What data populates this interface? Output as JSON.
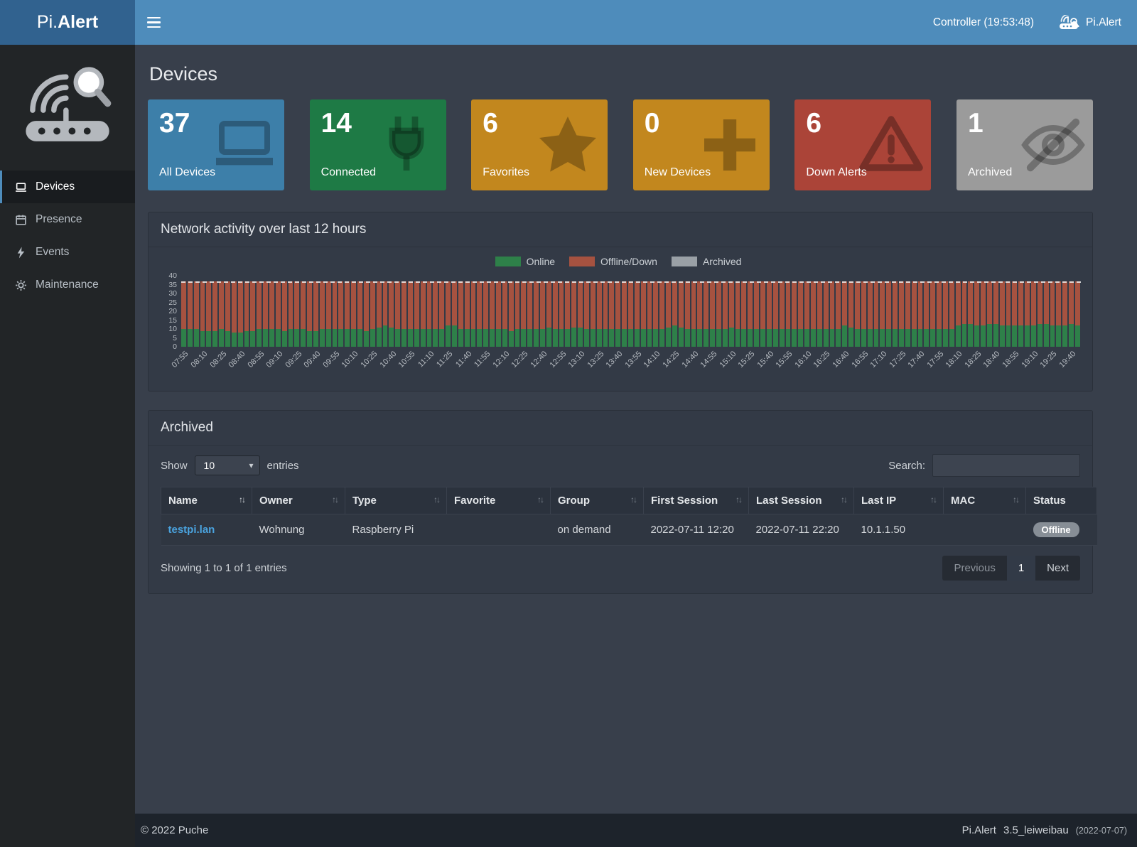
{
  "navbar": {
    "brand_pi": "Pi.",
    "brand_alert": "Alert",
    "controller": "Controller (19:53:48)",
    "right_brand": "Pi.Alert"
  },
  "sidebar": {
    "items": [
      {
        "label": "Devices",
        "icon": "laptop-icon",
        "active": true
      },
      {
        "label": "Presence",
        "icon": "calendar-icon",
        "active": false
      },
      {
        "label": "Events",
        "icon": "bolt-icon",
        "active": false
      },
      {
        "label": "Maintenance",
        "icon": "gear-icon",
        "active": false
      }
    ]
  },
  "page": {
    "title": "Devices"
  },
  "cards": [
    {
      "value": "37",
      "label": "All Devices",
      "color": "#3d7fa9",
      "icon": "laptop-icon"
    },
    {
      "value": "14",
      "label": "Connected",
      "color": "#1e7a45",
      "icon": "plug-icon"
    },
    {
      "value": "6",
      "label": "Favorites",
      "color": "#c2871e",
      "icon": "star-icon"
    },
    {
      "value": "0",
      "label": "New Devices",
      "color": "#c2871e",
      "icon": "plus-icon"
    },
    {
      "value": "6",
      "label": "Down Alerts",
      "color": "#ab4438",
      "icon": "warning-icon"
    },
    {
      "value": "1",
      "label": "Archived",
      "color": "#9b9b9b",
      "icon": "eye-slash-icon"
    }
  ],
  "chart_panel": {
    "title": "Network activity over last 12 hours"
  },
  "chart_data": {
    "type": "bar",
    "stacked": true,
    "title": "Network activity over last 12 hours",
    "xlabel": "",
    "ylabel": "",
    "ylim": [
      0,
      40
    ],
    "yticks": [
      0,
      5,
      10,
      15,
      20,
      25,
      30,
      35,
      40
    ],
    "grid": false,
    "legend_position": "top-center",
    "dashed_line_y": 37,
    "tick_every": 3,
    "x": [
      "07:55",
      "08:00",
      "08:05",
      "08:10",
      "08:15",
      "08:20",
      "08:25",
      "08:30",
      "08:35",
      "08:40",
      "08:45",
      "08:50",
      "08:55",
      "09:00",
      "09:05",
      "09:10",
      "09:15",
      "09:20",
      "09:25",
      "09:30",
      "09:35",
      "09:40",
      "09:45",
      "09:50",
      "09:55",
      "10:00",
      "10:05",
      "10:10",
      "10:15",
      "10:20",
      "10:25",
      "10:30",
      "10:35",
      "10:40",
      "10:45",
      "10:50",
      "10:55",
      "11:00",
      "11:05",
      "11:10",
      "11:15",
      "11:20",
      "11:25",
      "11:30",
      "11:35",
      "11:40",
      "11:45",
      "11:50",
      "11:55",
      "12:00",
      "12:05",
      "12:10",
      "12:15",
      "12:20",
      "12:25",
      "12:30",
      "12:35",
      "12:40",
      "12:45",
      "12:50",
      "12:55",
      "13:00",
      "13:05",
      "13:10",
      "13:15",
      "13:20",
      "13:25",
      "13:30",
      "13:35",
      "13:40",
      "13:45",
      "13:50",
      "13:55",
      "14:00",
      "14:05",
      "14:10",
      "14:15",
      "14:20",
      "14:25",
      "14:30",
      "14:35",
      "14:40",
      "14:45",
      "14:50",
      "14:55",
      "15:00",
      "15:05",
      "15:10",
      "15:15",
      "15:20",
      "15:25",
      "15:30",
      "15:35",
      "15:40",
      "15:45",
      "15:50",
      "15:55",
      "16:00",
      "16:05",
      "16:10",
      "16:15",
      "16:20",
      "16:25",
      "16:30",
      "16:35",
      "16:40",
      "16:45",
      "16:50",
      "16:55",
      "17:00",
      "17:05",
      "17:10",
      "17:15",
      "17:20",
      "17:25",
      "17:30",
      "17:35",
      "17:40",
      "17:45",
      "17:50",
      "17:55",
      "18:00",
      "18:05",
      "18:10",
      "18:15",
      "18:20",
      "18:25",
      "18:30",
      "18:35",
      "18:40",
      "18:45",
      "18:50",
      "18:55",
      "19:00",
      "19:05",
      "19:10",
      "19:15",
      "19:20",
      "19:25",
      "19:30",
      "19:35",
      "19:40",
      "19:45"
    ],
    "series": [
      {
        "name": "Online",
        "color": "#2e8049",
        "values": [
          10,
          10,
          10,
          9,
          9,
          9,
          10,
          9,
          8,
          8,
          9,
          9,
          10,
          10,
          10,
          10,
          9,
          10,
          10,
          10,
          9,
          9,
          10,
          10,
          10,
          10,
          10,
          10,
          10,
          9,
          10,
          11,
          12,
          11,
          10,
          10,
          10,
          10,
          10,
          10,
          10,
          10,
          12,
          12,
          10,
          10,
          10,
          10,
          10,
          10,
          10,
          10,
          9,
          10,
          10,
          10,
          10,
          10,
          11,
          10,
          10,
          10,
          11,
          11,
          10,
          10,
          10,
          10,
          10,
          10,
          10,
          10,
          10,
          10,
          10,
          10,
          10,
          11,
          12,
          11,
          10,
          10,
          10,
          10,
          10,
          10,
          10,
          11,
          10,
          10,
          10,
          10,
          10,
          10,
          10,
          10,
          10,
          10,
          10,
          10,
          10,
          10,
          10,
          10,
          10,
          12,
          11,
          10,
          10,
          10,
          10,
          10,
          10,
          10,
          10,
          10,
          10,
          10,
          10,
          10,
          10,
          10,
          10,
          12,
          13,
          13,
          12,
          12,
          13,
          13,
          12,
          12,
          12,
          12,
          12,
          12,
          13,
          13,
          12,
          12,
          12,
          13,
          12
        ]
      },
      {
        "name": "Offline/Down",
        "color": "#a65240",
        "values": [
          27,
          27,
          27,
          28,
          28,
          28,
          27,
          28,
          29,
          29,
          28,
          28,
          27,
          27,
          27,
          27,
          28,
          27,
          27,
          27,
          28,
          28,
          27,
          27,
          27,
          27,
          27,
          27,
          27,
          28,
          27,
          26,
          25,
          26,
          27,
          27,
          27,
          27,
          27,
          27,
          27,
          27,
          25,
          25,
          27,
          27,
          27,
          27,
          27,
          27,
          27,
          27,
          28,
          27,
          27,
          27,
          27,
          27,
          26,
          27,
          27,
          27,
          26,
          26,
          27,
          27,
          27,
          27,
          27,
          27,
          27,
          27,
          27,
          27,
          27,
          27,
          27,
          26,
          25,
          26,
          27,
          27,
          27,
          27,
          27,
          27,
          27,
          26,
          27,
          27,
          27,
          27,
          27,
          27,
          27,
          27,
          27,
          27,
          27,
          27,
          27,
          27,
          27,
          27,
          27,
          25,
          26,
          27,
          27,
          27,
          27,
          27,
          27,
          27,
          27,
          27,
          27,
          27,
          27,
          27,
          27,
          27,
          27,
          25,
          24,
          24,
          25,
          25,
          24,
          24,
          25,
          25,
          25,
          25,
          25,
          25,
          24,
          24,
          25,
          25,
          25,
          24,
          25
        ]
      },
      {
        "name": "Archived",
        "color": "#9aa0a6",
        "values": [
          0,
          0,
          0,
          0,
          0,
          0,
          0,
          0,
          0,
          0,
          0,
          0,
          0,
          0,
          0,
          0,
          0,
          0,
          0,
          0,
          0,
          0,
          0,
          0,
          0,
          0,
          0,
          0,
          0,
          0,
          0,
          0,
          0,
          0,
          0,
          0,
          0,
          0,
          0,
          0,
          0,
          0,
          0,
          0,
          0,
          0,
          0,
          0,
          0,
          0,
          0,
          0,
          0,
          0,
          0,
          0,
          0,
          0,
          0,
          0,
          0,
          0,
          0,
          0,
          0,
          0,
          0,
          0,
          0,
          0,
          0,
          0,
          0,
          0,
          0,
          0,
          0,
          0,
          0,
          0,
          0,
          0,
          0,
          0,
          0,
          0,
          0,
          0,
          0,
          0,
          0,
          0,
          0,
          0,
          0,
          0,
          0,
          0,
          0,
          0,
          0,
          0,
          0,
          0,
          0,
          0,
          0,
          0,
          0,
          0,
          0,
          0,
          0,
          0,
          0,
          0,
          0,
          0,
          0,
          0,
          0,
          0,
          0,
          0,
          0,
          0,
          0,
          0,
          0,
          0,
          0,
          0,
          0,
          0,
          0,
          0,
          0,
          0,
          0,
          0,
          0,
          0,
          0
        ]
      }
    ]
  },
  "archived_panel": {
    "title": "Archived",
    "show_label": "Show",
    "page_length": "10",
    "entries_label": "entries",
    "search_label": "Search:",
    "search_value": "",
    "columns": [
      "Name",
      "Owner",
      "Type",
      "Favorite",
      "Group",
      "First Session",
      "Last Session",
      "Last IP",
      "MAC",
      "Status"
    ],
    "rows": [
      {
        "name": "testpi.lan",
        "owner": "Wohnung",
        "type": "Raspberry Pi",
        "favorite": "",
        "group": "on demand",
        "first_session": "2022-07-11  12:20",
        "last_session": "2022-07-11  22:20",
        "last_ip": "10.1.1.50",
        "mac": "",
        "status": "Offline"
      }
    ],
    "info": "Showing 1 to 1 of 1 entries",
    "pagination": {
      "previous": "Previous",
      "page": "1",
      "next": "Next"
    }
  },
  "footer": {
    "left": "© 2022 Puche",
    "right_brand": "Pi.Alert",
    "right_version": "3.5_leiweibau",
    "right_date": "(2022-07-07)"
  },
  "icons": {
    "sort": "↑↓",
    "caret": "▾"
  }
}
